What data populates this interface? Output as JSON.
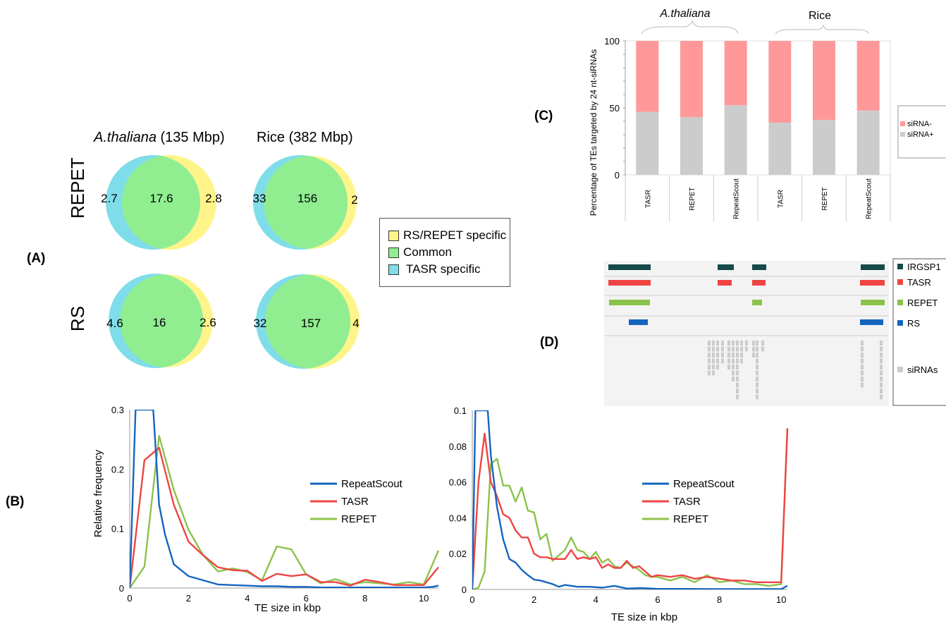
{
  "panel_labels": {
    "A": "(A)",
    "B": "(B)",
    "C": "(C)",
    "D": "(D)"
  },
  "colors": {
    "tasr_specific": "#7fdde9",
    "common": "#90ee90",
    "rs_repet_specific": "#fff48a",
    "repeatscout_line": "#1565c0",
    "tasr_line": "#ef4444",
    "repet_line": "#8bc34a",
    "sirna_minus": "#ff9999",
    "sirna_plus": "#cccccc",
    "irgsp1_track": "#164a4a",
    "rs_track": "#1565c0"
  },
  "venn": {
    "col_titles": [
      {
        "italic": "A.thaliana",
        "rest": " (135 Mbp)"
      },
      {
        "italic": "",
        "rest": "Rice (382 Mbp)"
      }
    ],
    "row_titles": [
      "REPET",
      "RS"
    ],
    "legend": [
      "RS/REPET specific",
      "Common",
      "TASR specific"
    ],
    "cells": [
      {
        "left": "2.7",
        "center": "17.6",
        "right": "2.8"
      },
      {
        "left": "33",
        "center": "156",
        "right": "2"
      },
      {
        "left": "4.6",
        "center": "16",
        "right": "2.6"
      },
      {
        "left": "32",
        "center": "157",
        "right": "4"
      }
    ]
  },
  "chart_data": [
    {
      "type": "bar",
      "stacked": true,
      "group_labels": [
        "A.thaliana",
        "Rice"
      ],
      "categories": [
        "TASR",
        "REPET",
        "RepeatScout",
        "TASR",
        "REPET",
        "RepeatScout"
      ],
      "series": [
        {
          "name": "siRNA+",
          "values": [
            47,
            43,
            52,
            39,
            41,
            48
          ]
        },
        {
          "name": "siRNA-",
          "values": [
            53,
            57,
            48,
            61,
            59,
            52
          ]
        }
      ],
      "ylabel": "Percentage of TEs  targeted by 24 nt-siRNAs",
      "ylim": [
        0,
        100
      ],
      "yticks": [
        "0",
        "50",
        "100"
      ],
      "legend_position": "right"
    },
    {
      "type": "line",
      "xlabel": "TE size in kbp",
      "ylabel": "Relative frequency",
      "xlim": [
        0,
        10.5
      ],
      "ylim": [
        0,
        0.3
      ],
      "xticks": [
        "0",
        "2",
        "4",
        "6",
        "8",
        "10"
      ],
      "yticks": [
        "0",
        "0.1",
        "0.2",
        "0.3"
      ],
      "legend_position": "center-right",
      "series": [
        {
          "name": "RepeatScout",
          "x": [
            0,
            0.2,
            0.4,
            0.6,
            0.8,
            1.0,
            1.2,
            1.5,
            2,
            2.5,
            3,
            3.5,
            4,
            4.5,
            5,
            5.5,
            6,
            6.5,
            7,
            7.5,
            8,
            8.5,
            9,
            9.5,
            10,
            10.3,
            10.5
          ],
          "y": [
            0,
            0.3,
            0.3,
            0.3,
            0.3,
            0.14,
            0.09,
            0.04,
            0.02,
            0.013,
            0.006,
            0.005,
            0.004,
            0.003,
            0.003,
            0.002,
            0.002,
            0.001,
            0.001,
            0.001,
            0.001,
            0.001,
            0.001,
            0.001,
            0.001,
            0.002,
            0.004
          ]
        },
        {
          "name": "TASR",
          "x": [
            0,
            0.5,
            1.0,
            1.5,
            2,
            2.5,
            3,
            3.5,
            4,
            4.5,
            5,
            5.5,
            6,
            6.5,
            7,
            7.5,
            8,
            8.5,
            9,
            9.5,
            10,
            10.5
          ],
          "y": [
            0,
            0.215,
            0.236,
            0.14,
            0.078,
            0.055,
            0.035,
            0.03,
            0.029,
            0.012,
            0.024,
            0.02,
            0.023,
            0.01,
            0.01,
            0.004,
            0.014,
            0.01,
            0.005,
            0.005,
            0.005,
            0.035
          ]
        },
        {
          "name": "REPET",
          "x": [
            0,
            0.5,
            1.0,
            1.5,
            2,
            2.5,
            3,
            3.5,
            4,
            4.5,
            5,
            5.5,
            6,
            6.5,
            7,
            7.5,
            8,
            8.5,
            9,
            9.5,
            10,
            10.5
          ],
          "y": [
            0,
            0.036,
            0.256,
            0.165,
            0.098,
            0.055,
            0.028,
            0.033,
            0.027,
            0.013,
            0.07,
            0.065,
            0.023,
            0.008,
            0.015,
            0.006,
            0.01,
            0.008,
            0.006,
            0.01,
            0.006,
            0.063
          ]
        }
      ]
    },
    {
      "type": "line",
      "xlabel": "TE size in kbp",
      "ylabel": "",
      "xlim": [
        0,
        10.2
      ],
      "ylim": [
        0,
        0.1
      ],
      "xticks": [
        "0",
        "2",
        "4",
        "6",
        "8",
        "10"
      ],
      "yticks": [
        "0",
        "0.02",
        "0.04",
        "0.06",
        "0.08",
        "0.1"
      ],
      "legend_position": "center-right",
      "series": [
        {
          "name": "RepeatScout",
          "x": [
            0,
            0.1,
            0.2,
            0.3,
            0.4,
            0.5,
            0.6,
            0.8,
            1.0,
            1.2,
            1.4,
            1.6,
            1.8,
            2.0,
            2.2,
            2.4,
            2.6,
            2.8,
            3.0,
            3.4,
            3.8,
            4.2,
            4.6,
            5,
            5.5,
            6,
            7,
            8,
            9,
            10,
            10.2
          ],
          "y": [
            0,
            0.1,
            0.1,
            0.1,
            0.1,
            0.1,
            0.075,
            0.046,
            0.028,
            0.017,
            0.015,
            0.011,
            0.008,
            0.0055,
            0.005,
            0.004,
            0.003,
            0.0015,
            0.0025,
            0.0015,
            0.0015,
            0.001,
            0.002,
            0.0005,
            0.0008,
            0.0003,
            0.0003,
            0.0002,
            0.0002,
            0.0002,
            0.002
          ]
        },
        {
          "name": "TASR",
          "x": [
            0,
            0.2,
            0.4,
            0.6,
            0.8,
            1.0,
            1.2,
            1.4,
            1.6,
            1.8,
            2.0,
            2.2,
            2.4,
            2.6,
            2.8,
            3.0,
            3.2,
            3.4,
            3.6,
            3.8,
            4.0,
            4.2,
            4.4,
            4.6,
            4.8,
            5.0,
            5.2,
            5.4,
            5.6,
            5.8,
            6.0,
            6.4,
            6.8,
            7.2,
            7.6,
            8.0,
            8.4,
            8.8,
            9.2,
            9.6,
            10.0,
            10.2
          ],
          "y": [
            0,
            0.06,
            0.087,
            0.06,
            0.052,
            0.042,
            0.04,
            0.033,
            0.029,
            0.029,
            0.02,
            0.018,
            0.018,
            0.017,
            0.017,
            0.017,
            0.022,
            0.017,
            0.018,
            0.017,
            0.018,
            0.012,
            0.014,
            0.012,
            0.012,
            0.016,
            0.012,
            0.013,
            0.01,
            0.007,
            0.008,
            0.007,
            0.008,
            0.006,
            0.007,
            0.006,
            0.005,
            0.005,
            0.004,
            0.004,
            0.004,
            0.09
          ]
        },
        {
          "name": "REPET",
          "x": [
            0,
            0.2,
            0.4,
            0.6,
            0.8,
            1.0,
            1.2,
            1.4,
            1.6,
            1.8,
            2.0,
            2.2,
            2.4,
            2.6,
            2.8,
            3.0,
            3.2,
            3.4,
            3.6,
            3.8,
            4.0,
            4.2,
            4.4,
            4.6,
            4.8,
            5.0,
            5.2,
            5.4,
            5.6,
            5.8,
            6.0,
            6.4,
            6.8,
            7.2,
            7.6,
            8.0,
            8.4,
            8.8,
            9.2,
            9.6,
            10.0,
            10.2
          ],
          "y": [
            0,
            0.001,
            0.01,
            0.07,
            0.073,
            0.058,
            0.058,
            0.049,
            0.057,
            0.044,
            0.043,
            0.028,
            0.031,
            0.016,
            0.019,
            0.022,
            0.029,
            0.022,
            0.021,
            0.017,
            0.021,
            0.015,
            0.017,
            0.013,
            0.012,
            0.015,
            0.013,
            0.011,
            0.008,
            0.007,
            0.007,
            0.005,
            0.007,
            0.004,
            0.008,
            0.004,
            0.005,
            0.003,
            0.003,
            0.002,
            0.003,
            0.09
          ]
        }
      ]
    }
  ],
  "genome_browser": {
    "tracks": [
      {
        "name": "IRGSP1",
        "color": "#164a4a"
      },
      {
        "name": "TASR",
        "color": "#ef4444"
      },
      {
        "name": "REPET",
        "color": "#8bc34a"
      },
      {
        "name": "RS",
        "color": "#1565c0"
      },
      {
        "name": "siRNAs",
        "color": "#cccccc"
      }
    ]
  }
}
